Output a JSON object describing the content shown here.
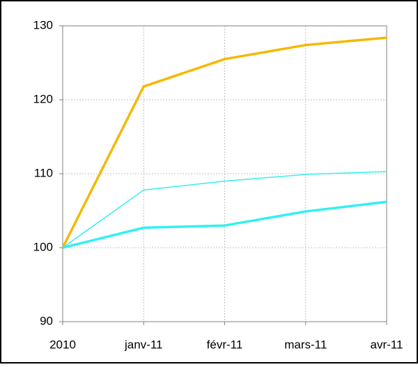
{
  "chart_data": {
    "type": "line",
    "categories": [
      "2010",
      "janv-11",
      "févr-11",
      "mars-11",
      "avr-11"
    ],
    "series": [
      {
        "color": "#f5b800",
        "linewidth": 3.5,
        "values": [
          100,
          121.8,
          125.5,
          127.4,
          128.4
        ]
      },
      {
        "color": "#33f0f0",
        "linewidth": 1.5,
        "values": [
          100,
          107.8,
          109.0,
          109.9,
          110.3
        ]
      },
      {
        "color": "#33f0f0",
        "linewidth": 3.5,
        "values": [
          100,
          102.7,
          103.0,
          104.9,
          106.2
        ]
      }
    ],
    "ylim": [
      90,
      130
    ],
    "yticks": [
      90,
      100,
      110,
      120,
      130
    ],
    "grid": true
  }
}
